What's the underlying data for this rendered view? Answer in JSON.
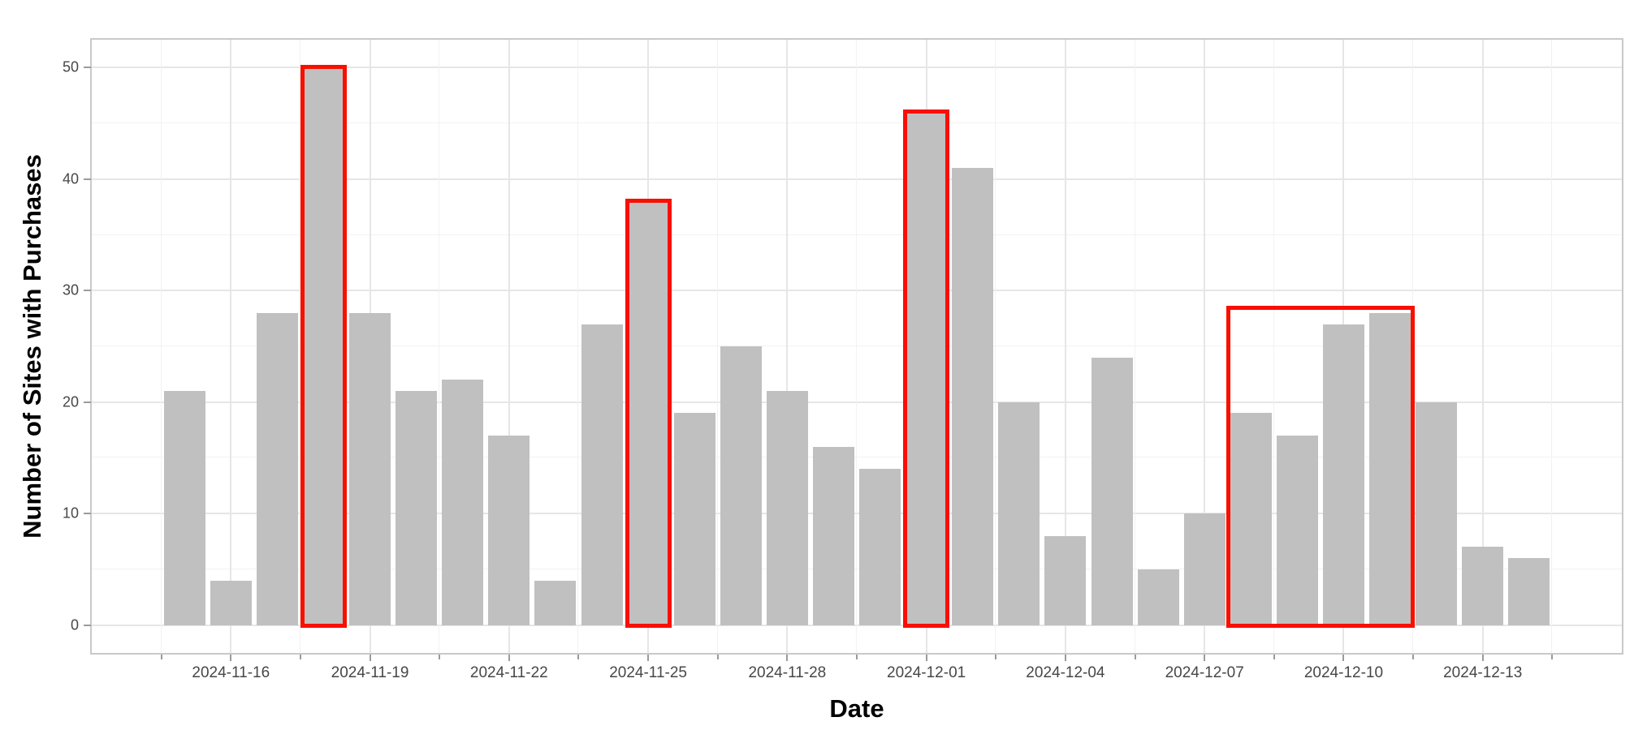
{
  "figure": {
    "background_color": "#ffffff"
  },
  "colors": {
    "bar_fill": "#c0c0c0",
    "highlight_outline": "#f90f00",
    "grid_major": "#e6e6e6",
    "grid_minor": "#f2f2f2",
    "panel_border": "#c9c9c9",
    "tick_mark": "#9b9b9b",
    "tick_label": "#474747",
    "axis_title": "#000000"
  },
  "chart_data": {
    "type": "bar",
    "title": "",
    "xlabel": "Date",
    "ylabel": "Number of Sites with Purchases",
    "categories": [
      "2024-11-15",
      "2024-11-16",
      "2024-11-17",
      "2024-11-18",
      "2024-11-19",
      "2024-11-20",
      "2024-11-21",
      "2024-11-22",
      "2024-11-23",
      "2024-11-24",
      "2024-11-25",
      "2024-11-26",
      "2024-11-27",
      "2024-11-28",
      "2024-11-29",
      "2024-11-30",
      "2024-12-01",
      "2024-12-02",
      "2024-12-03",
      "2024-12-04",
      "2024-12-05",
      "2024-12-06",
      "2024-12-07",
      "2024-12-08",
      "2024-12-09",
      "2024-12-10",
      "2024-12-11",
      "2024-12-12",
      "2024-12-13",
      "2024-12-14"
    ],
    "values": [
      21,
      4,
      28,
      50,
      28,
      21,
      22,
      17,
      4,
      27,
      38,
      19,
      25,
      21,
      16,
      14,
      46,
      41,
      20,
      8,
      24,
      5,
      10,
      19,
      17,
      27,
      28,
      20,
      7,
      6
    ],
    "highlighted_bars": [
      "2024-11-18",
      "2024-11-25",
      "2024-12-01"
    ],
    "highlighted_range": {
      "from": "2024-12-08",
      "to": "2024-12-11",
      "top_value": 28.4
    },
    "x_tick_labels": [
      "2024-11-16",
      "2024-11-19",
      "2024-11-22",
      "2024-11-25",
      "2024-11-28",
      "2024-12-01",
      "2024-12-04",
      "2024-12-07",
      "2024-12-10",
      "2024-12-13"
    ],
    "y_tick_labels": [
      "0",
      "10",
      "20",
      "30",
      "40",
      "50"
    ],
    "y_ticks": [
      0,
      10,
      20,
      30,
      40,
      50
    ],
    "y_minor_ticks": [
      5,
      15,
      25,
      35,
      45
    ],
    "ylim": [
      -2.5,
      52.5
    ],
    "x_domain": [
      "2024-11-13",
      "2024-12-16"
    ],
    "grid": true,
    "legend": false
  }
}
